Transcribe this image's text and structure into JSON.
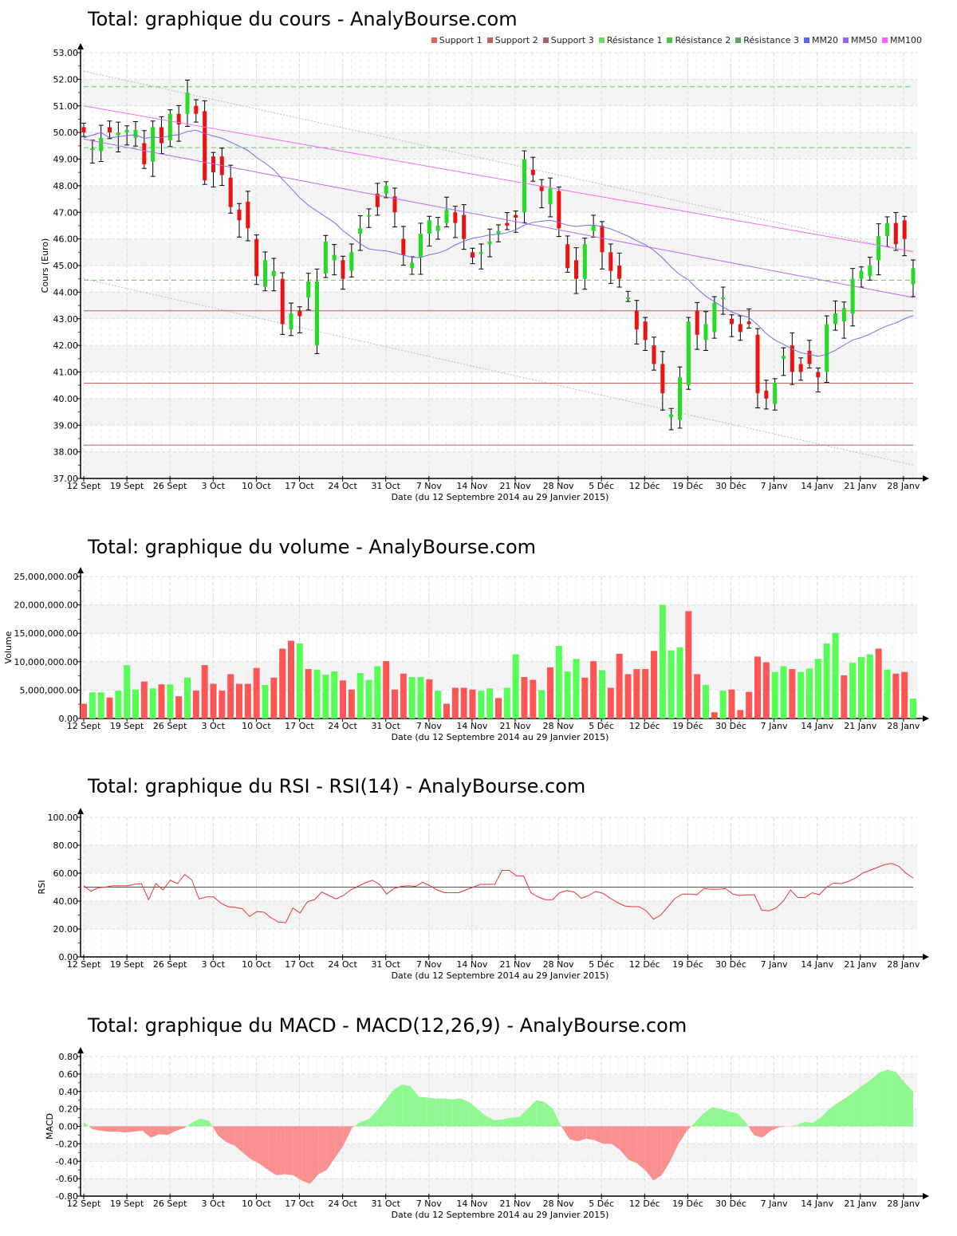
{
  "titles": {
    "price": "Total: graphique du cours - AnalyBourse.com",
    "volume": "Total: graphique du volume - AnalyBourse.com",
    "rsi": "Total: graphique du RSI - RSI(14) - AnalyBourse.com",
    "macd": "Total: graphique du MACD - MACD(12,26,9) - AnalyBourse.com"
  },
  "legend": [
    {
      "label": "Support 1",
      "color": "#e06060"
    },
    {
      "label": "Support 2",
      "color": "#c06060"
    },
    {
      "label": "Support 3",
      "color": "#a06868"
    },
    {
      "label": "Résistance 1",
      "color": "#60e060"
    },
    {
      "label": "Résistance 2",
      "color": "#50c050"
    },
    {
      "label": "Résistance 3",
      "color": "#60a060"
    },
    {
      "label": "MM20",
      "color": "#6060ff"
    },
    {
      "label": "MM50",
      "color": "#a060ff"
    },
    {
      "label": "MM100",
      "color": "#ff60ff"
    }
  ],
  "xlabel": "Date (du 12 Septembre 2014 au 29 Janvier 2015)",
  "colors": {
    "up": "#22dd22",
    "down": "#ee1111",
    "vol_up": "#55ff55",
    "vol_down": "#ff5555",
    "macd_pos": "#90f890",
    "macd_neg": "#f89090",
    "rsi_line": "#ee3333",
    "mm20": "#7070ee",
    "mm50": "#b070ee",
    "mm100": "#ee70ee",
    "support": "#c86060",
    "resistance": "#70c070"
  },
  "chart_data": [
    {
      "type": "candlestick",
      "title": "Total: graphique du cours - AnalyBourse.com",
      "xlabel": "Date (du 12 Septembre 2014 au 29 Janvier 2015)",
      "ylabel": "Cours (Euro)",
      "ylim": [
        37,
        53
      ],
      "yticks": [
        "53.00",
        "52.00",
        "51.00",
        "50.00",
        "49.00",
        "48.00",
        "47.00",
        "46.00",
        "45.00",
        "44.00",
        "43.00",
        "42.00",
        "41.00",
        "40.00",
        "39.00",
        "38.00",
        "37.00"
      ],
      "xticks": [
        "12 Sept",
        "19 Sept",
        "26 Sept",
        "3 Oct",
        "10 Oct",
        "17 Oct",
        "24 Oct",
        "31 Oct",
        "7 Nov",
        "14 Nov",
        "21 Nov",
        "28 Nov",
        "5 Déc",
        "12 Déc",
        "19 Déc",
        "30 Déc",
        "7 Janv",
        "14 Janv",
        "21 Janv",
        "28 Janv"
      ],
      "support": [
        43.3,
        40.58,
        38.25
      ],
      "resistance": [
        51.72,
        49.43,
        44.45
      ],
      "trend_upper": [
        52.3,
        45.5
      ],
      "trend_lower": [
        44.5,
        37.5
      ],
      "ohlc": [
        [
          50.2,
          50.3,
          49.7,
          50.0
        ],
        [
          49.4,
          49.6,
          49.1,
          49.4
        ],
        [
          49.5,
          50.0,
          49.3,
          49.8
        ],
        [
          50.2,
          50.3,
          49.9,
          50.0
        ],
        [
          50.0,
          50.1,
          49.6,
          50.0
        ],
        [
          50.0,
          50.3,
          49.5,
          50.1
        ],
        [
          49.9,
          50.9,
          49.5,
          50.1
        ],
        [
          49.6,
          49.6,
          48.5,
          48.8
        ],
        [
          48.9,
          50.3,
          48.8,
          50.2
        ],
        [
          50.2,
          50.3,
          49.2,
          49.6
        ],
        [
          49.7,
          51.0,
          49.5,
          50.7
        ],
        [
          50.7,
          50.9,
          50.1,
          50.3
        ],
        [
          50.8,
          51.7,
          50.6,
          51.5
        ],
        [
          51.0,
          51.3,
          50.4,
          50.7
        ],
        [
          50.8,
          50.8,
          48.2,
          48.2
        ],
        [
          49.1,
          49.2,
          48.2,
          48.5
        ],
        [
          49.1,
          49.1,
          47.9,
          48.4
        ],
        [
          48.3,
          48.3,
          47.2,
          47.2
        ],
        [
          47.1,
          47.4,
          46.7,
          46.7
        ],
        [
          47.4,
          47.4,
          46.0,
          46.4
        ],
        [
          46.0,
          46.0,
          44.5,
          44.6
        ],
        [
          44.2,
          45.0,
          44.0,
          45.2
        ],
        [
          44.8,
          45.2,
          43.8,
          44.8
        ],
        [
          44.5,
          44.5,
          42.7,
          42.8
        ],
        [
          42.6,
          44.5,
          42.2,
          43.2
        ],
        [
          43.3,
          43.3,
          42.6,
          43.1
        ],
        [
          44.0,
          44.4,
          42.7,
          44.4
        ],
        [
          42.0,
          44.4,
          42.0,
          44.4
        ]
      ],
      "ma": {}
    },
    {
      "type": "bar",
      "title": "Total: graphique du volume - AnalyBourse.com",
      "ylabel": "Volume",
      "ylim": [
        0,
        25000000
      ],
      "yticks": [
        "25,000,000.00",
        "20,000,000.00",
        "15,000,000.00",
        "10,000,000.00",
        "5,000,000.00",
        "0.00"
      ],
      "values": [
        2.6,
        4.6,
        4.6,
        3.7,
        4.9,
        9.4,
        5.1,
        6.5,
        5.3,
        6.0,
        6.0,
        3.9,
        7.2,
        4.9,
        9.4,
        6.1,
        4.9,
        7.8,
        6.1,
        6.1,
        8.9,
        5.9,
        7.2,
        12.3,
        13.7,
        13.2,
        8.7,
        8.6,
        7.7,
        8.3,
        6.7,
        5.1,
        8.0,
        6.8,
        9.2,
        10.1,
        5.1,
        7.9,
        7.3,
        7.3,
        6.9,
        4.9,
        2.6,
        5.4,
        5.4,
        5.1,
        4.9,
        5.3,
        3.6,
        5.4,
        11.3,
        7.3,
        6.8,
        5.0,
        9.0,
        12.8,
        8.3,
        10.5,
        7.2,
        10.1,
        8.5,
        5.4,
        11.4,
        7.8,
        8.7,
        8.7,
        11.9,
        20.0,
        12.0,
        12.5,
        18.9,
        7.8,
        5.9,
        1.1,
        4.9,
        5.1,
        1.5,
        4.7,
        10.9,
        9.9,
        8.2,
        9.2,
        8.7,
        8.2,
        8.8,
        10.5,
        13.2,
        15.1,
        7.6,
        9.8,
        10.8,
        11.3,
        12.3,
        8.6,
        7.9,
        8.2,
        3.5
      ],
      "up": [
        0,
        1,
        1,
        0,
        1,
        1,
        1,
        0,
        1,
        0,
        1,
        0,
        1,
        0,
        0,
        0,
        0,
        0,
        0,
        0,
        0,
        1,
        0,
        0,
        0,
        1,
        0,
        1,
        1,
        1,
        0,
        0,
        1,
        1,
        1,
        0,
        0,
        0,
        1,
        1,
        0,
        1,
        0,
        0,
        0,
        0,
        1,
        1,
        0,
        1,
        1,
        0,
        0,
        1,
        0,
        1,
        1,
        1,
        0,
        0,
        1,
        0,
        0,
        0,
        0,
        0,
        0,
        1,
        1,
        1,
        0,
        0,
        1,
        0,
        1,
        0,
        0,
        0,
        0,
        0,
        1,
        1,
        0,
        1,
        1,
        1,
        1,
        1,
        0,
        1,
        1,
        1,
        0,
        1,
        0,
        0,
        1
      ],
      "unit": "millions"
    },
    {
      "type": "line",
      "title": "Total: graphique du RSI - RSI(14) - AnalyBourse.com",
      "ylabel": "RSI",
      "ylim": [
        0,
        100
      ],
      "yticks": [
        "100.00",
        "80.00",
        "60.00",
        "40.00",
        "20.00",
        "0.00"
      ],
      "reference_line": 50,
      "values": [
        51,
        47,
        49.5,
        50,
        51,
        51,
        51,
        52,
        52.5,
        41,
        52.5,
        48,
        55,
        52.5,
        59,
        55,
        41.5,
        43,
        43,
        38.5,
        36,
        35.5,
        34.5,
        29,
        32.5,
        32,
        28,
        25,
        24.5,
        35,
        31.5,
        39.5,
        41,
        46.5,
        44,
        41.5,
        44,
        48,
        50.5,
        53,
        55,
        52,
        45,
        49,
        50.5,
        51,
        50.5,
        53.5,
        51,
        48,
        46,
        46,
        46,
        48,
        50,
        52,
        52,
        52,
        62,
        62,
        58,
        58,
        46,
        43,
        41,
        41,
        46,
        47.5,
        46.5,
        42,
        44,
        47,
        45.5,
        42,
        39,
        36.5,
        36,
        36,
        33,
        27,
        30,
        36,
        42,
        45,
        45,
        44.5,
        49,
        48.5,
        48.5,
        49,
        45,
        44,
        44.5,
        44.5,
        33.5,
        33,
        35,
        40,
        48,
        42.5,
        42.5,
        46,
        44.5,
        50,
        53,
        52.5,
        54,
        56.5,
        60,
        62,
        64,
        66,
        67,
        65,
        60,
        56.5
      ]
    },
    {
      "type": "area",
      "title": "Total: graphique du MACD - MACD(12,26,9) - AnalyBourse.com",
      "ylabel": "MACD",
      "ylim": [
        -0.8,
        0.8
      ],
      "yticks": [
        "0.80",
        "0.60",
        "0.40",
        "0.20",
        "0.00",
        "-0.20",
        "-0.40",
        "-0.60",
        "-0.80"
      ],
      "values": [
        0.05,
        -0.03,
        -0.05,
        -0.06,
        -0.06,
        -0.07,
        -0.06,
        -0.05,
        -0.13,
        -0.09,
        -0.1,
        -0.05,
        -0.02,
        0.05,
        0.09,
        0.06,
        -0.1,
        -0.18,
        -0.22,
        -0.3,
        -0.38,
        -0.43,
        -0.5,
        -0.56,
        -0.55,
        -0.56,
        -0.62,
        -0.66,
        -0.55,
        -0.5,
        -0.36,
        -0.22,
        -0.02,
        0.05,
        0.08,
        0.18,
        0.3,
        0.42,
        0.48,
        0.46,
        0.34,
        0.33,
        0.32,
        0.32,
        0.31,
        0.32,
        0.28,
        0.2,
        0.12,
        0.07,
        0.08,
        0.1,
        0.11,
        0.2,
        0.3,
        0.28,
        0.2,
        0.0,
        -0.15,
        -0.17,
        -0.14,
        -0.16,
        -0.2,
        -0.2,
        -0.27,
        -0.38,
        -0.42,
        -0.5,
        -0.62,
        -0.56,
        -0.4,
        -0.2,
        -0.05,
        0.05,
        0.15,
        0.22,
        0.2,
        0.17,
        0.15,
        0.05,
        -0.1,
        -0.13,
        -0.05,
        -0.01,
        0.0,
        0.01,
        0.05,
        0.04,
        0.1,
        0.2,
        0.27,
        0.33,
        0.4,
        0.47,
        0.54,
        0.62,
        0.65,
        0.62,
        0.5,
        0.4
      ]
    }
  ]
}
